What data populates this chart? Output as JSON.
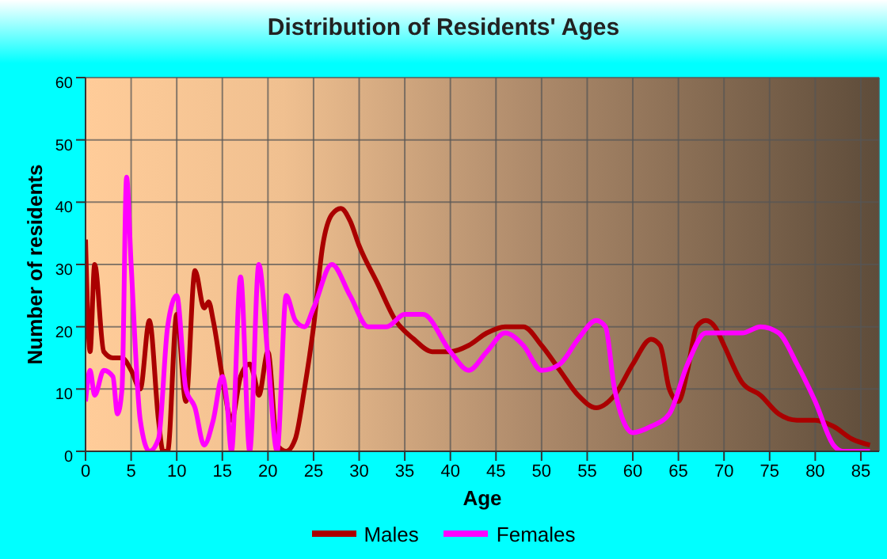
{
  "chart_data": {
    "type": "line",
    "title": "Distribution of Residents' Ages",
    "xlabel": "Age",
    "ylabel": "Number of residents",
    "xlim": [
      0,
      87
    ],
    "xticks": [
      0,
      5,
      10,
      15,
      20,
      25,
      30,
      35,
      40,
      45,
      50,
      55,
      60,
      65,
      70,
      75,
      80,
      85
    ],
    "ylim": [
      0,
      60
    ],
    "yticks": [
      0,
      10,
      20,
      30,
      40,
      50,
      60
    ],
    "grid": true,
    "legend": "bottom",
    "marker": "none",
    "line_style": "solid",
    "series": [
      {
        "name": "Males",
        "color": "#aa0000",
        "x": [
          0,
          0.5,
          1,
          2,
          3,
          4,
          5,
          6,
          7,
          8,
          8.5,
          9,
          10,
          11,
          12,
          13,
          13.5,
          14,
          15,
          16,
          17,
          18,
          18.5,
          19,
          20,
          21,
          22,
          23,
          24,
          25,
          26,
          27,
          28,
          29,
          30,
          32,
          34,
          36,
          38,
          40,
          42,
          44,
          46,
          48,
          50,
          52,
          54,
          56,
          58,
          60,
          62,
          63,
          64,
          65,
          66,
          67,
          68,
          69,
          70,
          72,
          74,
          76,
          78,
          80,
          82,
          84,
          86
        ],
        "values": [
          34,
          16,
          30,
          16,
          15,
          15,
          13,
          10,
          21,
          5,
          0,
          0,
          22,
          8,
          29,
          23,
          24,
          21,
          12,
          5,
          12,
          14,
          12,
          9,
          16,
          1,
          0,
          2,
          10,
          20,
          33,
          38,
          39,
          37,
          33,
          27,
          21,
          18,
          16,
          16,
          17,
          19,
          20,
          20,
          17,
          13,
          9,
          7,
          9,
          14,
          18,
          17,
          10,
          8,
          13,
          20,
          21,
          20,
          17,
          11,
          9,
          6,
          5,
          5,
          4,
          2,
          1
        ]
      },
      {
        "name": "Females",
        "color": "#ff00ff",
        "x": [
          0,
          0.5,
          1,
          2,
          3,
          3.5,
          4,
          4.5,
          5,
          6,
          7,
          8,
          9,
          10,
          11,
          12,
          13,
          14,
          15,
          15.5,
          16,
          17,
          18,
          19,
          20,
          21,
          22,
          23,
          24,
          25,
          27,
          29,
          31,
          33,
          35,
          37,
          40,
          42,
          44,
          46,
          48,
          50,
          52,
          54,
          56,
          57,
          58,
          60,
          62,
          64,
          66,
          68,
          70,
          72,
          74,
          76,
          78,
          80,
          82,
          83,
          86
        ],
        "values": [
          8,
          13,
          9,
          13,
          12,
          6,
          10,
          44,
          30,
          5,
          0,
          2,
          20,
          25,
          10,
          7,
          1,
          5,
          12,
          8,
          0,
          28,
          0,
          30,
          15,
          0,
          25,
          21,
          20,
          23,
          30,
          25,
          20,
          20,
          22,
          22,
          16,
          13,
          16,
          19,
          17,
          13,
          14,
          18,
          21,
          20,
          10,
          3,
          4,
          6,
          14,
          19,
          19,
          19,
          20,
          19,
          14,
          8,
          1,
          0,
          0
        ]
      }
    ]
  }
}
